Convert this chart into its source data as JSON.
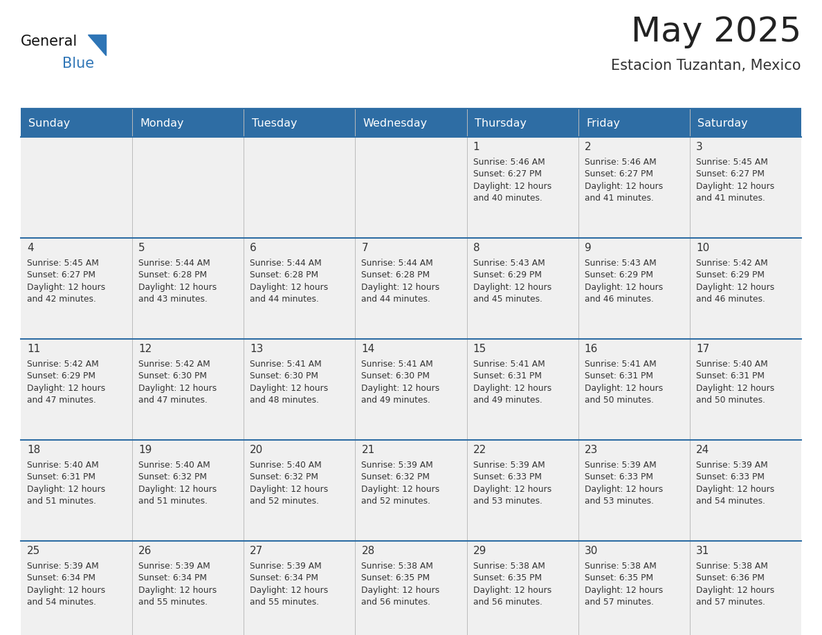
{
  "title": "May 2025",
  "subtitle": "Estacion Tuzantan, Mexico",
  "header_bg": "#2E6DA4",
  "header_text_color": "#FFFFFF",
  "cell_bg_light": "#F0F0F0",
  "text_color": "#333333",
  "line_color": "#2E6DA4",
  "day_names": [
    "Sunday",
    "Monday",
    "Tuesday",
    "Wednesday",
    "Thursday",
    "Friday",
    "Saturday"
  ],
  "days_data": [
    {
      "day": 1,
      "col": 4,
      "row": 0,
      "sunrise": "5:46 AM",
      "sunset": "6:27 PM",
      "daylight_min": "40"
    },
    {
      "day": 2,
      "col": 5,
      "row": 0,
      "sunrise": "5:46 AM",
      "sunset": "6:27 PM",
      "daylight_min": "41"
    },
    {
      "day": 3,
      "col": 6,
      "row": 0,
      "sunrise": "5:45 AM",
      "sunset": "6:27 PM",
      "daylight_min": "41"
    },
    {
      "day": 4,
      "col": 0,
      "row": 1,
      "sunrise": "5:45 AM",
      "sunset": "6:27 PM",
      "daylight_min": "42"
    },
    {
      "day": 5,
      "col": 1,
      "row": 1,
      "sunrise": "5:44 AM",
      "sunset": "6:28 PM",
      "daylight_min": "43"
    },
    {
      "day": 6,
      "col": 2,
      "row": 1,
      "sunrise": "5:44 AM",
      "sunset": "6:28 PM",
      "daylight_min": "44"
    },
    {
      "day": 7,
      "col": 3,
      "row": 1,
      "sunrise": "5:44 AM",
      "sunset": "6:28 PM",
      "daylight_min": "44"
    },
    {
      "day": 8,
      "col": 4,
      "row": 1,
      "sunrise": "5:43 AM",
      "sunset": "6:29 PM",
      "daylight_min": "45"
    },
    {
      "day": 9,
      "col": 5,
      "row": 1,
      "sunrise": "5:43 AM",
      "sunset": "6:29 PM",
      "daylight_min": "46"
    },
    {
      "day": 10,
      "col": 6,
      "row": 1,
      "sunrise": "5:42 AM",
      "sunset": "6:29 PM",
      "daylight_min": "46"
    },
    {
      "day": 11,
      "col": 0,
      "row": 2,
      "sunrise": "5:42 AM",
      "sunset": "6:29 PM",
      "daylight_min": "47"
    },
    {
      "day": 12,
      "col": 1,
      "row": 2,
      "sunrise": "5:42 AM",
      "sunset": "6:30 PM",
      "daylight_min": "47"
    },
    {
      "day": 13,
      "col": 2,
      "row": 2,
      "sunrise": "5:41 AM",
      "sunset": "6:30 PM",
      "daylight_min": "48"
    },
    {
      "day": 14,
      "col": 3,
      "row": 2,
      "sunrise": "5:41 AM",
      "sunset": "6:30 PM",
      "daylight_min": "49"
    },
    {
      "day": 15,
      "col": 4,
      "row": 2,
      "sunrise": "5:41 AM",
      "sunset": "6:31 PM",
      "daylight_min": "49"
    },
    {
      "day": 16,
      "col": 5,
      "row": 2,
      "sunrise": "5:41 AM",
      "sunset": "6:31 PM",
      "daylight_min": "50"
    },
    {
      "day": 17,
      "col": 6,
      "row": 2,
      "sunrise": "5:40 AM",
      "sunset": "6:31 PM",
      "daylight_min": "50"
    },
    {
      "day": 18,
      "col": 0,
      "row": 3,
      "sunrise": "5:40 AM",
      "sunset": "6:31 PM",
      "daylight_min": "51"
    },
    {
      "day": 19,
      "col": 1,
      "row": 3,
      "sunrise": "5:40 AM",
      "sunset": "6:32 PM",
      "daylight_min": "51"
    },
    {
      "day": 20,
      "col": 2,
      "row": 3,
      "sunrise": "5:40 AM",
      "sunset": "6:32 PM",
      "daylight_min": "52"
    },
    {
      "day": 21,
      "col": 3,
      "row": 3,
      "sunrise": "5:39 AM",
      "sunset": "6:32 PM",
      "daylight_min": "52"
    },
    {
      "day": 22,
      "col": 4,
      "row": 3,
      "sunrise": "5:39 AM",
      "sunset": "6:33 PM",
      "daylight_min": "53"
    },
    {
      "day": 23,
      "col": 5,
      "row": 3,
      "sunrise": "5:39 AM",
      "sunset": "6:33 PM",
      "daylight_min": "53"
    },
    {
      "day": 24,
      "col": 6,
      "row": 3,
      "sunrise": "5:39 AM",
      "sunset": "6:33 PM",
      "daylight_min": "54"
    },
    {
      "day": 25,
      "col": 0,
      "row": 4,
      "sunrise": "5:39 AM",
      "sunset": "6:34 PM",
      "daylight_min": "54"
    },
    {
      "day": 26,
      "col": 1,
      "row": 4,
      "sunrise": "5:39 AM",
      "sunset": "6:34 PM",
      "daylight_min": "55"
    },
    {
      "day": 27,
      "col": 2,
      "row": 4,
      "sunrise": "5:39 AM",
      "sunset": "6:34 PM",
      "daylight_min": "55"
    },
    {
      "day": 28,
      "col": 3,
      "row": 4,
      "sunrise": "5:38 AM",
      "sunset": "6:35 PM",
      "daylight_min": "56"
    },
    {
      "day": 29,
      "col": 4,
      "row": 4,
      "sunrise": "5:38 AM",
      "sunset": "6:35 PM",
      "daylight_min": "56"
    },
    {
      "day": 30,
      "col": 5,
      "row": 4,
      "sunrise": "5:38 AM",
      "sunset": "6:35 PM",
      "daylight_min": "57"
    },
    {
      "day": 31,
      "col": 6,
      "row": 4,
      "sunrise": "5:38 AM",
      "sunset": "6:36 PM",
      "daylight_min": "57"
    }
  ],
  "num_rows": 5,
  "num_cols": 7
}
